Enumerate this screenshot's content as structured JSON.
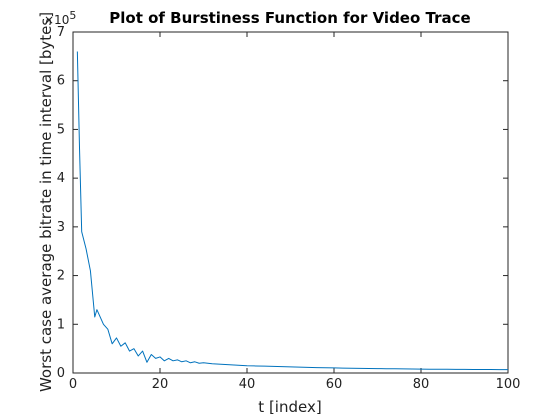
{
  "chart_data": {
    "type": "line",
    "title": "Plot of Burstiness Function for Video Trace",
    "xlabel": "t [index]",
    "ylabel": "Worst case average bitrate in time interval [bytes]",
    "y_exponent_base": "×10",
    "y_exponent_power": "5",
    "xlim": [
      0,
      100
    ],
    "ylim": [
      0,
      7
    ],
    "y_scale_factor": 100000,
    "xticks": [
      0,
      20,
      40,
      60,
      80,
      100
    ],
    "yticks": [
      0,
      1,
      2,
      3,
      4,
      5,
      6,
      7
    ],
    "grid": false,
    "line_color": "#0072BD",
    "series": [
      {
        "x": [
          1,
          1.5,
          2,
          3,
          4,
          5,
          5.5,
          6,
          7,
          8,
          9,
          10,
          11,
          12,
          13,
          14,
          15,
          16,
          17,
          18,
          19,
          20,
          21,
          22,
          23,
          24,
          25,
          26,
          27,
          28,
          29,
          30,
          32,
          34,
          36,
          38,
          40,
          42,
          44,
          46,
          48,
          50,
          52,
          54,
          56,
          58,
          60,
          62,
          64,
          66,
          68,
          70,
          72,
          74,
          76,
          78,
          80,
          82,
          84,
          86,
          88,
          90,
          92,
          94,
          96,
          98,
          100
        ],
        "y": [
          6.6,
          4.6,
          2.9,
          2.55,
          2.1,
          1.15,
          1.3,
          1.2,
          1.0,
          0.9,
          0.6,
          0.72,
          0.55,
          0.62,
          0.45,
          0.5,
          0.35,
          0.45,
          0.22,
          0.38,
          0.3,
          0.33,
          0.25,
          0.3,
          0.25,
          0.27,
          0.23,
          0.25,
          0.21,
          0.23,
          0.2,
          0.21,
          0.19,
          0.18,
          0.17,
          0.16,
          0.15,
          0.145,
          0.14,
          0.135,
          0.13,
          0.125,
          0.12,
          0.115,
          0.11,
          0.108,
          0.105,
          0.1,
          0.098,
          0.095,
          0.092,
          0.09,
          0.088,
          0.086,
          0.084,
          0.082,
          0.08,
          0.078,
          0.077,
          0.076,
          0.075,
          0.074,
          0.073,
          0.072,
          0.071,
          0.07,
          0.07
        ]
      }
    ]
  }
}
